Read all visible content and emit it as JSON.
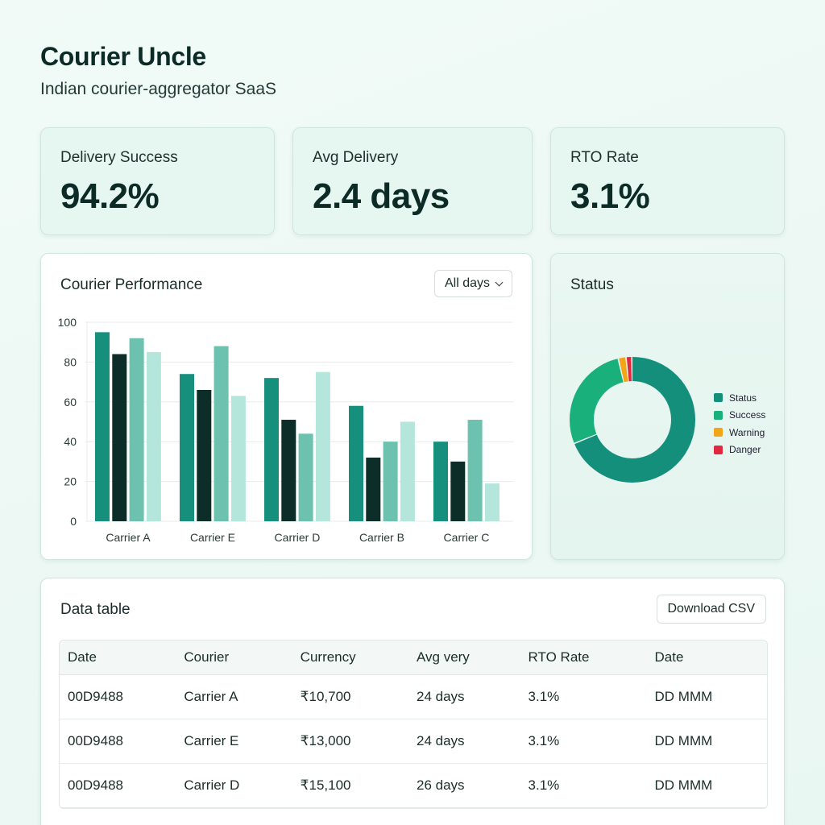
{
  "header": {
    "title": "Courier Uncle",
    "subtitle": "Indian courier-aggregator SaaS"
  },
  "kpis": [
    {
      "label": "Delivery Success",
      "value": "94.2%"
    },
    {
      "label": "Avg Delivery",
      "value": "2.4 days"
    },
    {
      "label": "RTO Rate",
      "value": "3.1%"
    }
  ],
  "performance": {
    "title": "Courier Performance",
    "filter_label": "All days"
  },
  "status_panel": {
    "title": "Status",
    "legend": [
      {
        "label": "Status",
        "color": "#148f7c"
      },
      {
        "label": "Success",
        "color": "#19b07c"
      },
      {
        "label": "Warning",
        "color": "#f2a516"
      },
      {
        "label": "Danger",
        "color": "#e0283e"
      }
    ]
  },
  "colors": {
    "accent": "#148f7c",
    "series": [
      "#168f7d",
      "#0d2e28",
      "#6cc1af",
      "#b5e6dc"
    ]
  },
  "chart_data": [
    {
      "type": "bar",
      "title": "Courier Performance",
      "categories": [
        "Carrier A",
        "Carrier E",
        "Carrier D",
        "Carrier B",
        "Carrier C"
      ],
      "series": [
        {
          "values": [
            95,
            74,
            72,
            58,
            40
          ]
        },
        {
          "values": [
            84,
            66,
            51,
            32,
            30
          ]
        },
        {
          "values": [
            92,
            88,
            44,
            40,
            51
          ]
        },
        {
          "values": [
            85,
            63,
            75,
            50,
            19
          ]
        }
      ],
      "ylim": [
        0,
        100
      ],
      "yticks": [
        0,
        20,
        40,
        60,
        80,
        100
      ],
      "grid": true
    },
    {
      "type": "pie",
      "title": "Status",
      "labels": [
        "Status",
        "Success",
        "Warning",
        "Danger"
      ],
      "values": [
        69,
        27.5,
        2,
        1.5
      ]
    }
  ],
  "table": {
    "title": "Data table",
    "download_label": "Download CSV",
    "columns": [
      "Date",
      "Courier",
      "Currency",
      "Avg very",
      "RTO Rate",
      "Date"
    ],
    "rows": [
      [
        "00D9488",
        "Carrier A",
        "₹10,700",
        "24 days",
        "3.1%",
        "DD MMM"
      ],
      [
        "00D9488",
        "Carrier E",
        "₹13,000",
        "24 days",
        "3.1%",
        "DD MMM"
      ],
      [
        "00D9488",
        "Carrier D",
        "₹15,100",
        "26 days",
        "3.1%",
        "DD MMM"
      ]
    ]
  }
}
